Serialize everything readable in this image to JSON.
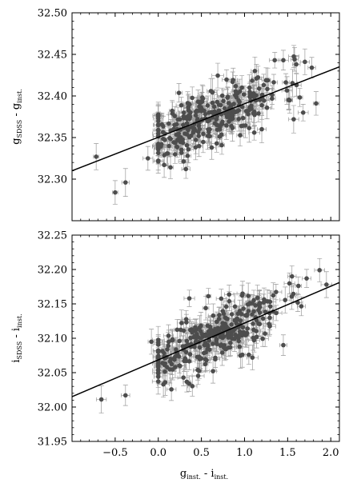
{
  "chart_data": [
    {
      "type": "scatter",
      "ylabel": {
        "main": "g",
        "sub1": "SDSS",
        "mid": " - g",
        "sub2": "inst."
      },
      "xlabel": {
        "main": "",
        "sub1": "",
        "mid": "",
        "sub2": ""
      },
      "xlim": [
        -1.0,
        2.1
      ],
      "ylim": [
        32.25,
        32.5
      ],
      "yticks": [
        32.3,
        32.35,
        32.4,
        32.45,
        32.5
      ],
      "ytick_labels": [
        "32.30",
        "32.35",
        "32.40",
        "32.45",
        "32.50"
      ],
      "xticks": [
        -0.5,
        0.0,
        0.5,
        1.0,
        1.5,
        2.0
      ],
      "fit_line": {
        "x": [
          -1.0,
          2.1
        ],
        "y": [
          32.31,
          32.435
        ]
      },
      "colors": {
        "points": "#4d4d4d",
        "errorbars": "#9a9a9a",
        "fit": "#000000"
      },
      "seed": 11,
      "n_cloud": 300,
      "cloud_x_mean": 0.6,
      "cloud_x_spread": 0.42,
      "cloud_x_range": [
        0.0,
        1.85
      ],
      "cloud_scatter": 0.017,
      "err_x": [
        0.03,
        0.07
      ],
      "err_y": [
        0.009,
        0.017
      ],
      "points": [
        {
          "x": -0.72,
          "y": 32.327
        },
        {
          "x": -0.5,
          "y": 32.284
        },
        {
          "x": -0.38,
          "y": 32.296
        },
        {
          "x": -0.12,
          "y": 32.325
        },
        {
          "x": 0.0,
          "y": 32.373
        },
        {
          "x": 1.35,
          "y": 32.443
        },
        {
          "x": 1.45,
          "y": 32.443
        },
        {
          "x": 1.6,
          "y": 32.438
        },
        {
          "x": 1.7,
          "y": 32.441
        },
        {
          "x": 1.78,
          "y": 32.434
        },
        {
          "x": 1.57,
          "y": 32.372
        },
        {
          "x": 1.83,
          "y": 32.391
        },
        {
          "x": 1.68,
          "y": 32.38
        },
        {
          "x": 1.12,
          "y": 32.43
        },
        {
          "x": 1.2,
          "y": 32.36
        },
        {
          "x": 0.34,
          "y": 32.328
        }
      ]
    },
    {
      "type": "scatter",
      "ylabel": {
        "main": "i",
        "sub1": "SDSS",
        "mid": " - i",
        "sub2": "inst."
      },
      "xlabel": {
        "main": "g",
        "sub1": "inst.",
        "mid": " - i",
        "sub2": "inst."
      },
      "xlim": [
        -1.0,
        2.1
      ],
      "ylim": [
        31.95,
        32.25
      ],
      "yticks": [
        31.95,
        32.0,
        32.05,
        32.1,
        32.15,
        32.2,
        32.25
      ],
      "ytick_labels": [
        "31.95",
        "32.00",
        "32.05",
        "32.10",
        "32.15",
        "32.20",
        "32.25"
      ],
      "xticks": [
        -0.5,
        0.0,
        0.5,
        1.0,
        1.5,
        2.0
      ],
      "xtick_labels": [
        "−0.5",
        "0.0",
        "0.5",
        "1.0",
        "1.5",
        "2.0"
      ],
      "fit_line": {
        "x": [
          -1.0,
          2.1
        ],
        "y": [
          32.015,
          32.181
        ]
      },
      "colors": {
        "points": "#4d4d4d",
        "errorbars": "#9a9a9a",
        "fit": "#000000"
      },
      "seed": 23,
      "n_cloud": 300,
      "cloud_x_mean": 0.6,
      "cloud_x_spread": 0.42,
      "cloud_x_range": [
        0.0,
        1.95
      ],
      "cloud_scatter": 0.02,
      "err_x": [
        0.03,
        0.07
      ],
      "err_y": [
        0.011,
        0.02
      ],
      "points": [
        {
          "x": -0.66,
          "y": 32.011
        },
        {
          "x": -0.38,
          "y": 32.017
        },
        {
          "x": -0.08,
          "y": 32.095
        },
        {
          "x": 0.0,
          "y": 32.044
        },
        {
          "x": 0.08,
          "y": 32.036
        },
        {
          "x": 1.87,
          "y": 32.199
        },
        {
          "x": 1.95,
          "y": 32.178
        },
        {
          "x": 1.72,
          "y": 32.187
        },
        {
          "x": 1.55,
          "y": 32.19
        },
        {
          "x": 1.05,
          "y": 32.076
        },
        {
          "x": 1.45,
          "y": 32.09
        },
        {
          "x": 0.36,
          "y": 32.158
        }
      ]
    }
  ]
}
